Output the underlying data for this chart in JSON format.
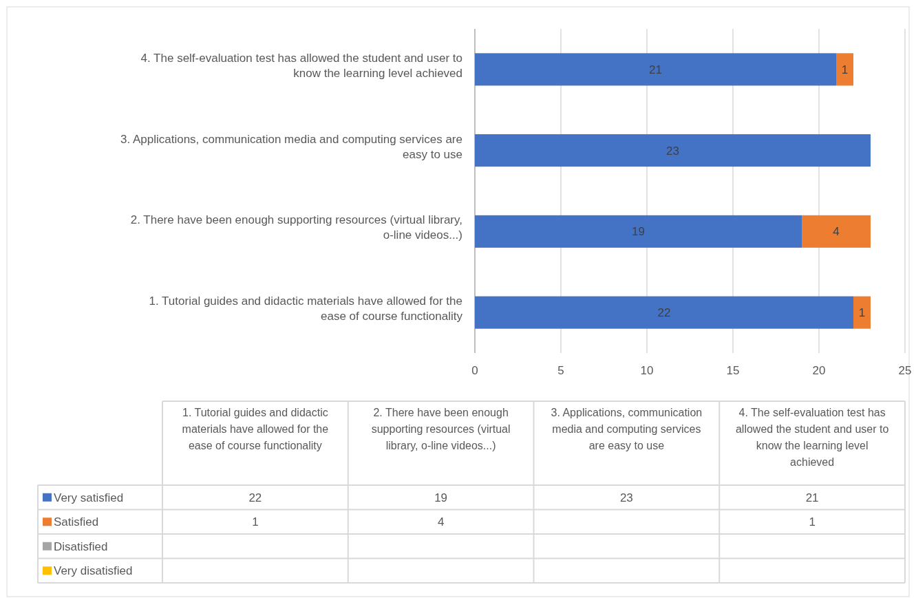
{
  "chart_data": [
    {
      "type": "bar",
      "orientation": "horizontal",
      "stacked": true,
      "categories": [
        "4. The self-evaluation test has allowed the student and user to know the learning level achieved",
        "3. Applications, communication media and computing services are easy to use",
        "2. There have been enough supporting resources (virtual library, o-line videos...)",
        "1. Tutorial guides and didactic materials have allowed for the ease of course functionality"
      ],
      "series": [
        {
          "color": "#4472c4",
          "values": [
            21,
            23,
            19,
            22
          ]
        },
        {
          "color": "#ed7d31",
          "values": [
            1,
            null,
            4,
            1
          ]
        }
      ],
      "xlim": [
        0,
        25
      ],
      "xticks": [
        0,
        5,
        10,
        15,
        20,
        25
      ],
      "grid": "x",
      "data_labels": true
    },
    {
      "type": "other",
      "categories": [
        "1. Tutorial guides and didactic materials have allowed for the ease of course functionality",
        "2. There have been enough supporting resources (virtual library, o-line videos...)",
        "3. Applications, communication media and computing services are easy to use",
        "4. The self-evaluation test has allowed the student and user to know the learning level achieved"
      ],
      "series": [
        {
          "name": "Very satisfied",
          "color": "#4472c4",
          "values": [
            22,
            19,
            23,
            21
          ]
        },
        {
          "name": "Satisfied",
          "color": "#ed7d31",
          "values": [
            1,
            4,
            null,
            1
          ]
        },
        {
          "name": "Disatisfied",
          "color": "#a5a5a5",
          "values": [
            null,
            null,
            null,
            null
          ]
        },
        {
          "name": "Very disatisfied",
          "color": "#ffc000",
          "values": [
            null,
            null,
            null,
            null
          ]
        }
      ],
      "legend": "left",
      "data_labels": true
    }
  ]
}
